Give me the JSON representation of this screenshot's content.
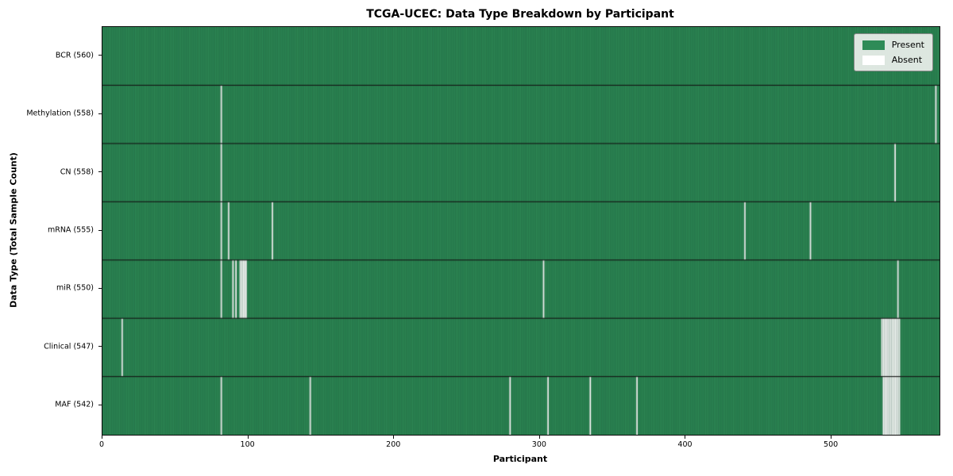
{
  "chart_data": {
    "type": "heatmap",
    "title": "TCGA-UCEC: Data Type Breakdown by Participant",
    "xlabel": "Participant",
    "ylabel": "Data Type (Total Sample Count)",
    "x_ticks": [
      0,
      100,
      200,
      300,
      400,
      500
    ],
    "xlim": [
      0,
      574
    ],
    "grid": false,
    "legend_position": "upper right",
    "colors": {
      "present": "#2e8b57",
      "absent": "#ffffff"
    },
    "legend": [
      {
        "label": "Present",
        "color": "#2e8b57"
      },
      {
        "label": "Absent",
        "color": "#ffffff"
      }
    ],
    "rows": [
      {
        "name": "BCR",
        "total": 560,
        "label": "BCR (560)",
        "absent": []
      },
      {
        "name": "Methylation",
        "total": 558,
        "label": "Methylation (558)",
        "absent": [
          81,
          571
        ]
      },
      {
        "name": "CN",
        "total": 558,
        "label": "CN (558)",
        "absent": [
          81,
          543
        ]
      },
      {
        "name": "mRNA",
        "total": 555,
        "label": "mRNA (555)",
        "absent": [
          81,
          86,
          116,
          440,
          485
        ]
      },
      {
        "name": "miR",
        "total": 550,
        "label": "miR (550)",
        "absent": [
          81,
          89,
          91,
          94,
          95,
          96,
          97,
          98,
          302,
          545
        ]
      },
      {
        "name": "Clinical",
        "total": 547,
        "label": "Clinical (547)",
        "absent": [
          13,
          534,
          535,
          536,
          537,
          538,
          539,
          540,
          541,
          542,
          543,
          544,
          545,
          546
        ]
      },
      {
        "name": "MAF",
        "total": 542,
        "label": "MAF (542)",
        "absent": [
          81,
          142,
          279,
          305,
          334,
          366,
          535,
          536,
          537,
          538,
          539,
          540,
          541,
          542,
          543,
          544,
          545,
          546
        ]
      }
    ]
  }
}
